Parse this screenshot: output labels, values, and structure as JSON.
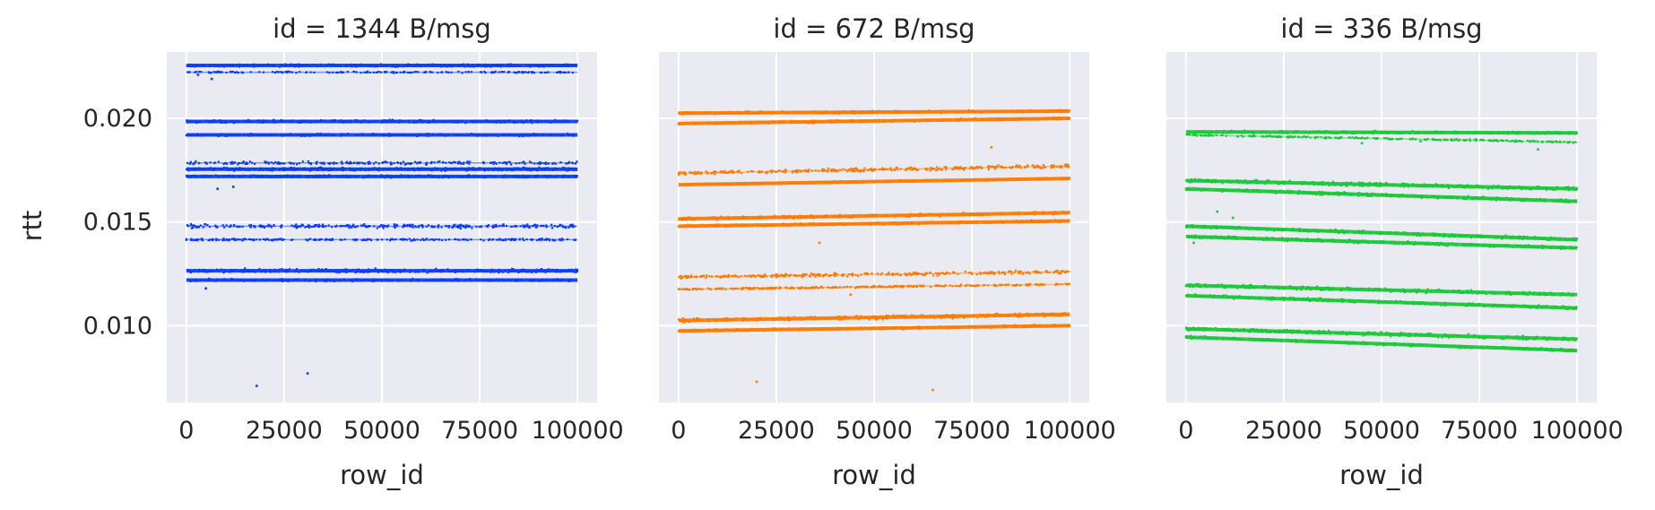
{
  "chart_data": {
    "type": "scatter",
    "ylabel": "rtt",
    "ylim": [
      0.0063,
      0.0232
    ],
    "yticks": [
      0.01,
      0.015,
      0.02
    ],
    "ytick_labels": [
      "0.010",
      "0.015",
      "0.020"
    ],
    "grid": true,
    "facets": [
      {
        "title": "id = 1344 B/msg",
        "xlabel": "row_id",
        "color": "#0b3dff",
        "xlim": [
          -5000,
          105000
        ],
        "xticks": [
          0,
          25000,
          50000,
          75000,
          100000
        ],
        "xtick_labels": [
          "0",
          "25000",
          "50000",
          "75000",
          "100000"
        ],
        "bands": [
          {
            "y_start": 0.02255,
            "y_end": 0.02255,
            "spread": 8e-05,
            "density": 1.0
          },
          {
            "y_start": 0.02222,
            "y_end": 0.02222,
            "spread": 5e-05,
            "density": 0.35
          },
          {
            "y_start": 0.01985,
            "y_end": 0.01985,
            "spread": 0.0001,
            "density": 0.9
          },
          {
            "y_start": 0.0192,
            "y_end": 0.0192,
            "spread": 8e-05,
            "density": 0.9
          },
          {
            "y_start": 0.01785,
            "y_end": 0.01785,
            "spread": 0.0001,
            "density": 0.45
          },
          {
            "y_start": 0.01755,
            "y_end": 0.01755,
            "spread": 0.0001,
            "density": 1.0
          },
          {
            "y_start": 0.0172,
            "y_end": 0.0172,
            "spread": 8e-05,
            "density": 1.0
          },
          {
            "y_start": 0.0148,
            "y_end": 0.0148,
            "spread": 0.00012,
            "density": 0.6
          },
          {
            "y_start": 0.01415,
            "y_end": 0.01415,
            "spread": 6e-05,
            "density": 0.5
          },
          {
            "y_start": 0.01265,
            "y_end": 0.01265,
            "spread": 0.00012,
            "density": 1.0
          },
          {
            "y_start": 0.0122,
            "y_end": 0.0122,
            "spread": 8e-05,
            "density": 0.9
          }
        ],
        "outliers": [
          [
            18000,
            0.0071
          ],
          [
            31000,
            0.0077
          ],
          [
            5000,
            0.0118
          ],
          [
            8000,
            0.0166
          ],
          [
            12000,
            0.0167
          ],
          [
            3000,
            0.0221
          ],
          [
            6500,
            0.0219
          ]
        ]
      },
      {
        "title": "id = 672 B/msg",
        "xlabel": "row_id",
        "color": "#ff7c00",
        "xlim": [
          -5000,
          105000
        ],
        "xticks": [
          0,
          25000,
          50000,
          75000,
          100000
        ],
        "xtick_labels": [
          "0",
          "25000",
          "50000",
          "75000",
          "100000"
        ],
        "bands": [
          {
            "y_start": 0.02025,
            "y_end": 0.02035,
            "spread": 8e-05,
            "density": 1.0
          },
          {
            "y_start": 0.01975,
            "y_end": 0.02,
            "spread": 8e-05,
            "density": 1.0
          },
          {
            "y_start": 0.01735,
            "y_end": 0.0177,
            "spread": 0.00012,
            "density": 0.7
          },
          {
            "y_start": 0.0168,
            "y_end": 0.0171,
            "spread": 6e-05,
            "density": 0.9
          },
          {
            "y_start": 0.01515,
            "y_end": 0.01545,
            "spread": 0.0001,
            "density": 0.9
          },
          {
            "y_start": 0.0148,
            "y_end": 0.01505,
            "spread": 8e-05,
            "density": 1.0
          },
          {
            "y_start": 0.01235,
            "y_end": 0.0126,
            "spread": 0.00012,
            "density": 0.6
          },
          {
            "y_start": 0.01175,
            "y_end": 0.012,
            "spread": 6e-05,
            "density": 0.6
          },
          {
            "y_start": 0.01025,
            "y_end": 0.01055,
            "spread": 0.00012,
            "density": 1.0
          },
          {
            "y_start": 0.00975,
            "y_end": 0.01,
            "spread": 8e-05,
            "density": 1.0
          }
        ],
        "outliers": [
          [
            20000,
            0.0073
          ],
          [
            65000,
            0.0069
          ],
          [
            44000,
            0.0115
          ],
          [
            36000,
            0.014
          ],
          [
            80000,
            0.0186
          ]
        ]
      },
      {
        "title": "id = 336 B/msg",
        "xlabel": "row_id",
        "color": "#1ac938",
        "xlim": [
          -5000,
          105000
        ],
        "xticks": [
          0,
          25000,
          50000,
          75000,
          100000
        ],
        "xtick_labels": [
          "0",
          "25000",
          "50000",
          "75000",
          "100000"
        ],
        "bands": [
          {
            "y_start": 0.01935,
            "y_end": 0.0193,
            "spread": 8e-05,
            "density": 1.0
          },
          {
            "y_start": 0.0192,
            "y_end": 0.01885,
            "spread": 6e-05,
            "density": 0.5
          },
          {
            "y_start": 0.017,
            "y_end": 0.0166,
            "spread": 0.00012,
            "density": 1.0
          },
          {
            "y_start": 0.0166,
            "y_end": 0.016,
            "spread": 0.0001,
            "density": 1.0
          },
          {
            "y_start": 0.0148,
            "y_end": 0.01415,
            "spread": 0.0001,
            "density": 1.0
          },
          {
            "y_start": 0.0143,
            "y_end": 0.01375,
            "spread": 0.0001,
            "density": 1.0
          },
          {
            "y_start": 0.01195,
            "y_end": 0.0115,
            "spread": 0.00012,
            "density": 0.9
          },
          {
            "y_start": 0.01145,
            "y_end": 0.01085,
            "spread": 0.0001,
            "density": 0.9
          },
          {
            "y_start": 0.00985,
            "y_end": 0.00935,
            "spread": 0.00012,
            "density": 1.0
          },
          {
            "y_start": 0.00945,
            "y_end": 0.0088,
            "spread": 8e-05,
            "density": 1.0
          }
        ],
        "outliers": [
          [
            2000,
            0.014
          ],
          [
            8000,
            0.0155
          ],
          [
            12000,
            0.0152
          ],
          [
            60000,
            0.0189
          ],
          [
            45000,
            0.0188
          ],
          [
            90000,
            0.0185
          ]
        ]
      }
    ]
  }
}
